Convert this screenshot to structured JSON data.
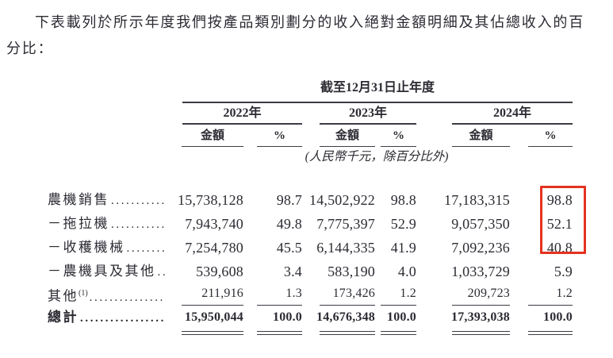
{
  "intro": "下表載列於所示年度我們按產品類別劃分的收入絕對金額明細及其佔總收入的百分比：",
  "table": {
    "period_header": "截至12月31日止年度",
    "years": [
      "2022年",
      "2023年",
      "2024年"
    ],
    "amount_header": "金額",
    "percent_header": "%",
    "unit_note": "(人民幣千元，除百分比外)",
    "leader_dots": "................................",
    "rows": [
      {
        "label": "農機銷售",
        "a2022": "15,738,128",
        "p2022": "98.7",
        "a2023": "14,502,922",
        "p2023": "98.8",
        "a2024": "17,183,315",
        "p2024": "98.8"
      },
      {
        "label": "－拖拉機",
        "a2022": "7,943,740",
        "p2022": "49.8",
        "a2023": "7,775,397",
        "p2023": "52.9",
        "a2024": "9,057,350",
        "p2024": "52.1"
      },
      {
        "label": "－收穫機械",
        "a2022": "7,254,780",
        "p2022": "45.5",
        "a2023": "6,144,335",
        "p2023": "41.9",
        "a2024": "7,092,236",
        "p2024": "40.8"
      },
      {
        "label": "－農機具及其他",
        "a2022": "539,608",
        "p2022": "3.4",
        "a2023": "583,190",
        "p2023": "4.0",
        "a2024": "1,033,729",
        "p2024": "5.9"
      },
      {
        "label": "其他",
        "sup": "(1)",
        "a2022": "211,916",
        "p2022": "1.3",
        "a2023": "173,426",
        "p2023": "1.2",
        "a2024": "209,723",
        "p2024": "1.2"
      }
    ],
    "total": {
      "label": "總計",
      "a2022": "15,950,044",
      "p2022": "100.0",
      "a2023": "14,676,348",
      "p2023": "100.0",
      "a2024": "17,393,038",
      "p2024": "100.0"
    }
  },
  "colors": {
    "text": "#2b2b33",
    "line": "#3c3c44",
    "highlight": "#e53220"
  }
}
